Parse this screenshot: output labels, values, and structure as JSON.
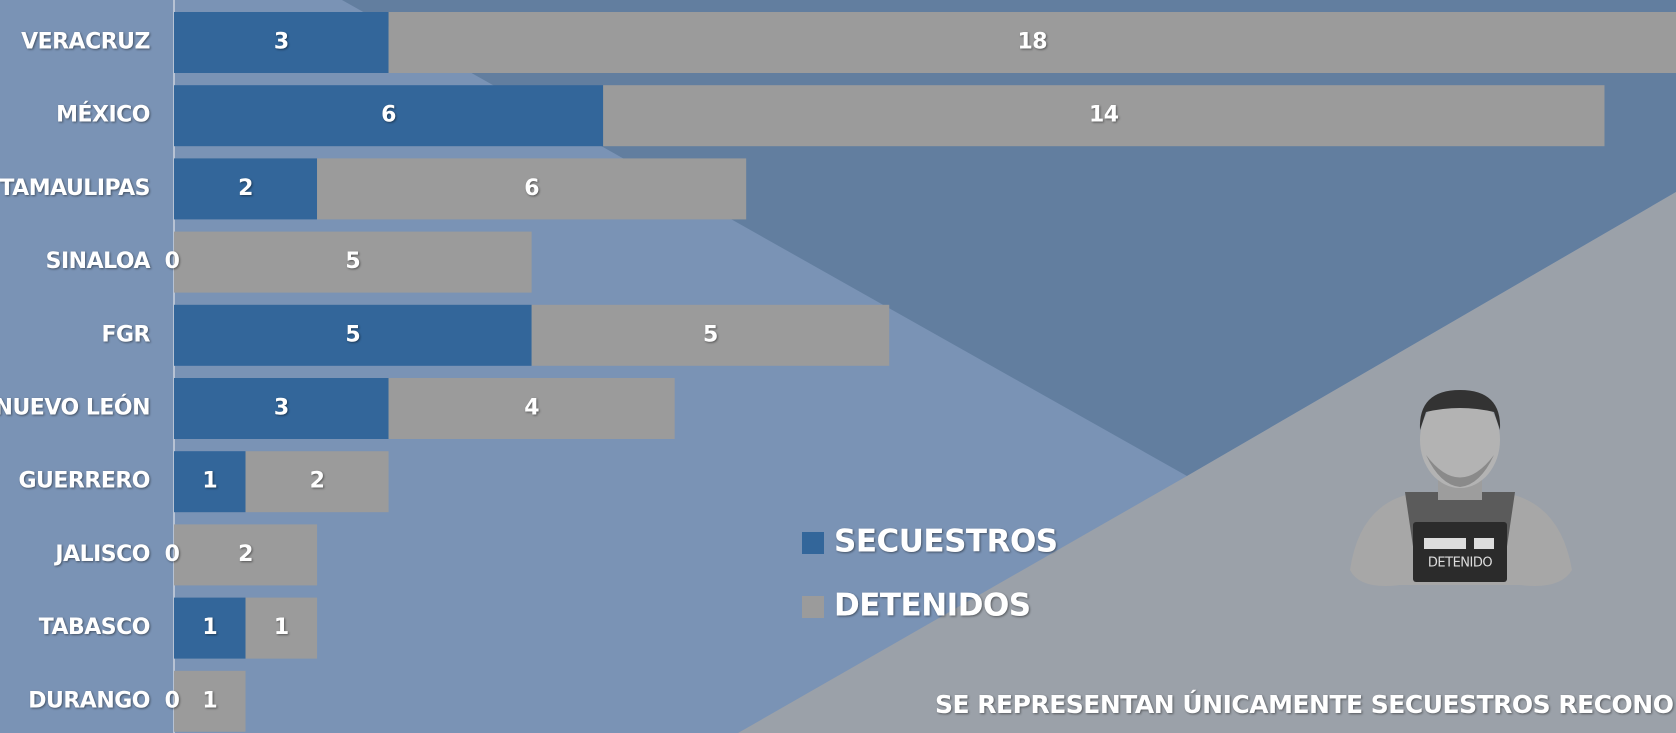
{
  "chart_data": {
    "type": "stacked-bar-horizontal",
    "categories": [
      "VERACRUZ",
      "MÉXICO",
      "TAMAULIPAS",
      "SINALOA",
      "FGR",
      "NUEVO LEÓN",
      "GUERRERO",
      "JALISCO",
      "TABASCO",
      "DURANGO"
    ],
    "series": [
      {
        "name": "SECUESTROS",
        "color": "#33669a",
        "values": [
          3,
          6,
          2,
          0,
          5,
          3,
          1,
          0,
          1,
          0
        ]
      },
      {
        "name": "DETENIDOS",
        "color": "#9b9b9b",
        "values": [
          18,
          14,
          6,
          5,
          5,
          4,
          2,
          2,
          1,
          1
        ]
      }
    ],
    "annotations": [
      "SE REPRESENTAN ÚNICAMENTE SECUESTROS RECONO",
      "DETENIDO"
    ]
  }
}
